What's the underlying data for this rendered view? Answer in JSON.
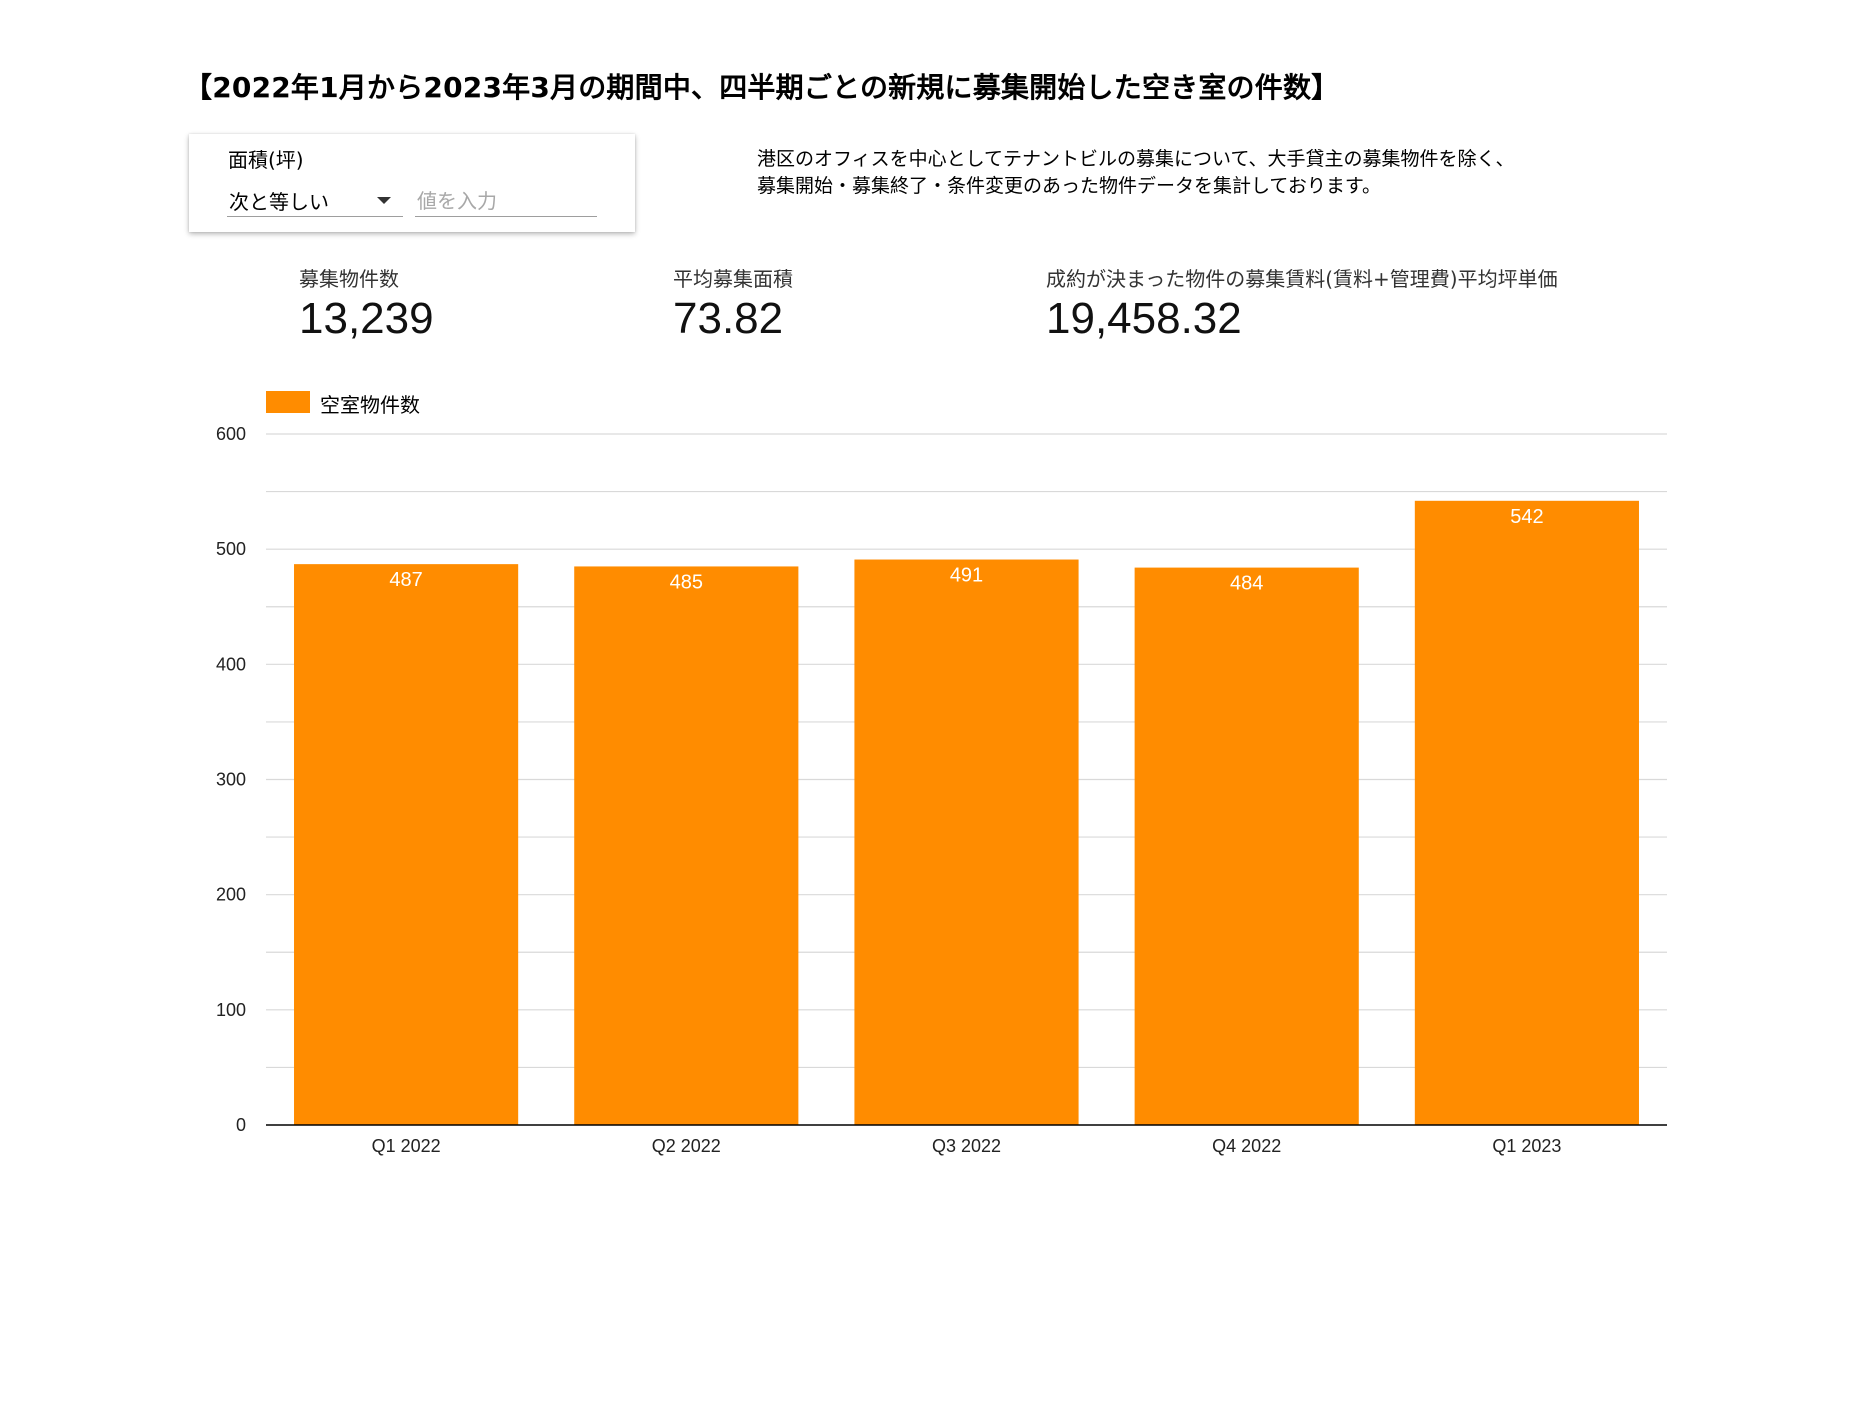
{
  "title": "【2022年1月から2023年3月の期間中、四半期ごとの新規に募集開始した空き室の件数】",
  "filter": {
    "label": "面積(坪)",
    "operator": "次と等しい",
    "value": "",
    "placeholder": "値を入力"
  },
  "description": {
    "line1": "港区のオフィスを中心としてテナントビルの募集について、大手貸主の募集物件を除く、",
    "line2": "募集開始・募集終了・条件変更のあった物件データを集計しております。"
  },
  "kpis": [
    {
      "label": "募集物件数",
      "value": "13,239"
    },
    {
      "label": "平均募集面積",
      "value": "73.82"
    },
    {
      "label": "成約が決まった物件の募集賃料(賃料+管理費)平均坪単価",
      "value": "19,458.32"
    }
  ],
  "colors": {
    "bar": "#ff8c00",
    "grid": "#d9d9d9",
    "axis": "#000000",
    "data_label": "#ffffff"
  },
  "chart_data": {
    "type": "bar",
    "categories": [
      "Q1 2022",
      "Q2 2022",
      "Q3 2022",
      "Q4 2022",
      "Q1 2023"
    ],
    "series": [
      {
        "name": "空室物件数",
        "values": [
          487,
          485,
          491,
          484,
          542
        ]
      }
    ],
    "ylim": [
      0,
      600
    ],
    "yticks": [
      0,
      100,
      200,
      300,
      400,
      500,
      600
    ],
    "grid": true,
    "legend": "top-left",
    "data_labels": true
  }
}
